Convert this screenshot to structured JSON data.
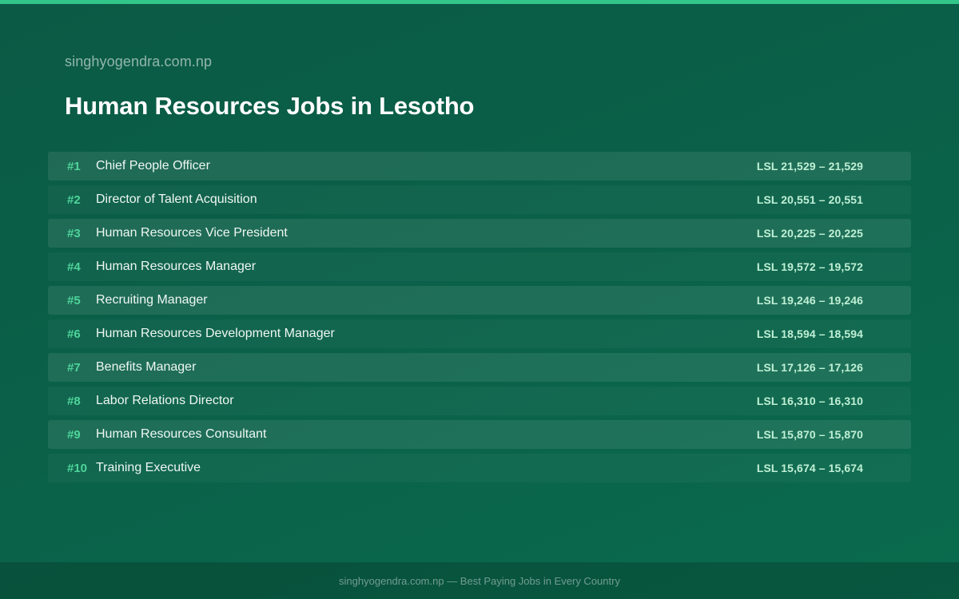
{
  "header": {
    "site_name": "singhyogendra.com.np",
    "title": "Human Resources Jobs in Lesotho"
  },
  "colors": {
    "accent": "#33c68a",
    "rank": "#4ed49a",
    "background": "#0a6048"
  },
  "jobs": [
    {
      "rank": "#1",
      "title": "Chief People Officer",
      "salary": "LSL 21,529 – 21,529"
    },
    {
      "rank": "#2",
      "title": "Director of Talent Acquisition",
      "salary": "LSL 20,551 – 20,551"
    },
    {
      "rank": "#3",
      "title": "Human Resources Vice President",
      "salary": "LSL 20,225 – 20,225"
    },
    {
      "rank": "#4",
      "title": "Human Resources Manager",
      "salary": "LSL 19,572 – 19,572"
    },
    {
      "rank": "#5",
      "title": "Recruiting Manager",
      "salary": "LSL 19,246 – 19,246"
    },
    {
      "rank": "#6",
      "title": "Human Resources Development Manager",
      "salary": "LSL 18,594 – 18,594"
    },
    {
      "rank": "#7",
      "title": "Benefits Manager",
      "salary": "LSL 17,126 – 17,126"
    },
    {
      "rank": "#8",
      "title": "Labor Relations Director",
      "salary": "LSL 16,310 – 16,310"
    },
    {
      "rank": "#9",
      "title": "Human Resources Consultant",
      "salary": "LSL 15,870 – 15,870"
    },
    {
      "rank": "#10",
      "title": "Training Executive",
      "salary": "LSL 15,674 – 15,674"
    }
  ],
  "footer": {
    "text": "singhyogendra.com.np — Best Paying Jobs in Every Country"
  }
}
